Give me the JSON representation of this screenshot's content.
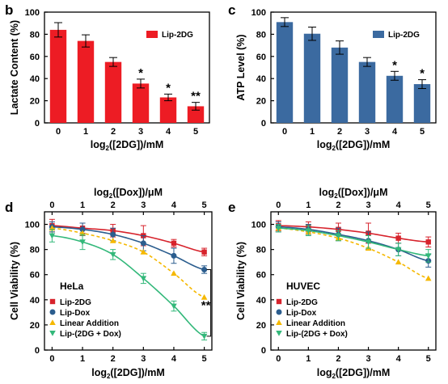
{
  "chart_data": [
    {
      "panel_label": "b",
      "type": "bar",
      "categories": [
        "0",
        "1",
        "2",
        "3",
        "4",
        "5"
      ],
      "series": [
        {
          "name": "Lip-2DG",
          "values": [
            84,
            74,
            55,
            35.5,
            23,
            15
          ],
          "errors": [
            6.5,
            5.5,
            4,
            4,
            3,
            3.5
          ],
          "color": "#ed1c24"
        }
      ],
      "annotations": [
        "",
        "",
        "",
        "*",
        "*",
        "**"
      ],
      "xlabel": "log2([2DG])/mM",
      "ylabel": "Lactate Content (%)",
      "ylim": [
        0,
        100
      ],
      "yticks": [
        "0",
        "20",
        "40",
        "60",
        "80",
        "100"
      ],
      "legend_position": "top-right",
      "grid": false
    },
    {
      "panel_label": "c",
      "type": "bar",
      "categories": [
        "0",
        "1",
        "2",
        "3",
        "4",
        "5"
      ],
      "series": [
        {
          "name": "Lip-2DG",
          "values": [
            91,
            80.5,
            68,
            55,
            42.5,
            35
          ],
          "errors": [
            4,
            6,
            6,
            4,
            4,
            4
          ],
          "color": "#3b6aa0"
        }
      ],
      "annotations": [
        "",
        "",
        "",
        "",
        "*",
        "*"
      ],
      "xlabel": "log2([2DG])/mM",
      "ylabel": "ATP Level (%)",
      "ylim": [
        0,
        100
      ],
      "yticks": [
        "0",
        "20",
        "40",
        "60",
        "80",
        "100"
      ],
      "legend_position": "top-right",
      "grid": false
    },
    {
      "panel_label": "d",
      "type": "line",
      "cell_label": "HeLa",
      "x": [
        0,
        1,
        2,
        3,
        4,
        5
      ],
      "xticks": [
        "0",
        "1",
        "2",
        "3",
        "4",
        "5"
      ],
      "x2ticks": [
        "0",
        "1",
        "2",
        "3",
        "4",
        "5"
      ],
      "series": [
        {
          "name": "Lip-2DG",
          "values": [
            99,
            97,
            95,
            91,
            85,
            78
          ],
          "errors": [
            5,
            4,
            5,
            8,
            3,
            3
          ],
          "color": "#d7232c",
          "marker": "square",
          "dashed": false
        },
        {
          "name": "Lip-Dox",
          "values": [
            98,
            96,
            92,
            85,
            75,
            64
          ],
          "errors": [
            4,
            5,
            5,
            6,
            6,
            3
          ],
          "color": "#2b5d8e",
          "marker": "circle",
          "dashed": false
        },
        {
          "name": "Linear Addition",
          "values": [
            97,
            93,
            87,
            78,
            61,
            42
          ],
          "errors": [
            0,
            0,
            0,
            0,
            0,
            0
          ],
          "color": "#f5b800",
          "marker": "triangle-up",
          "dashed": true
        },
        {
          "name": "Lip-(2DG + Dox)",
          "values": [
            91,
            86,
            76,
            57,
            35,
            11
          ],
          "errors": [
            5,
            6,
            4,
            4,
            4,
            3
          ],
          "color": "#33b87a",
          "marker": "triangle-down",
          "dashed": false
        }
      ],
      "annotations": [
        "**"
      ],
      "xlabel": "log2([2DG])/mM",
      "x2label": "log2([Dox])/μM",
      "ylabel": "Cell Viability (%)",
      "ylim": [
        0,
        110
      ],
      "yticks": [
        "0",
        "20",
        "40",
        "60",
        "80",
        "100"
      ],
      "legend_position": "bottom-left",
      "grid": false
    },
    {
      "panel_label": "e",
      "type": "line",
      "cell_label": "HUVEC",
      "x": [
        0,
        1,
        2,
        3,
        4,
        5
      ],
      "xticks": [
        "0",
        "1",
        "2",
        "3",
        "4",
        "5"
      ],
      "x2ticks": [
        "0",
        "1",
        "2",
        "3",
        "4",
        "5"
      ],
      "series": [
        {
          "name": "Lip-2DG",
          "values": [
            99,
            98,
            96,
            93,
            89,
            86
          ],
          "errors": [
            4,
            4,
            5,
            8,
            4,
            4
          ],
          "color": "#d7232c",
          "marker": "square",
          "dashed": false
        },
        {
          "name": "Lip-Dox",
          "values": [
            98,
            96,
            92,
            87,
            80,
            71
          ],
          "errors": [
            4,
            4,
            5,
            7,
            5,
            5
          ],
          "color": "#2b5d8e",
          "marker": "circle",
          "dashed": false
        },
        {
          "name": "Linear Addition",
          "values": [
            97,
            94,
            89,
            81,
            70,
            57
          ],
          "errors": [
            0,
            0,
            0,
            0,
            0,
            0
          ],
          "color": "#f5b800",
          "marker": "triangle-up",
          "dashed": true
        },
        {
          "name": "Lip-(2DG + Dox)",
          "values": [
            97,
            95,
            91,
            86,
            80,
            75
          ],
          "errors": [
            3,
            4,
            4,
            5,
            5,
            5
          ],
          "color": "#33b87a",
          "marker": "triangle-down",
          "dashed": false
        }
      ],
      "xlabel": "log2([2DG])/mM",
      "x2label": "log2([Dox])/μM",
      "ylabel": "Cell Viability (%)",
      "ylim": [
        0,
        110
      ],
      "yticks": [
        "0",
        "20",
        "40",
        "60",
        "80",
        "100"
      ],
      "legend_position": "bottom-left",
      "grid": false
    }
  ]
}
